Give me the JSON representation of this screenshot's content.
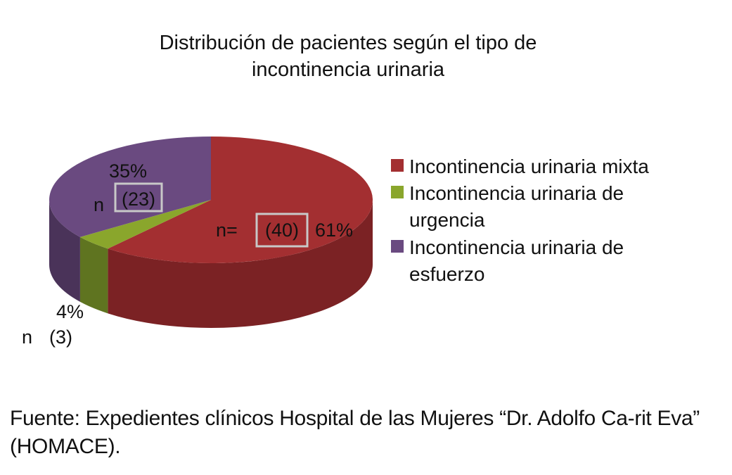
{
  "chart_data": {
    "type": "pie",
    "style": "3d",
    "title_lines": [
      "Distribución de pacientes según el tipo de",
      "incontinencia urinaria"
    ],
    "slices": [
      {
        "name": "Incontinencia urinaria mixta",
        "value": 61,
        "percent_label": "61%",
        "n_prefix": "n=",
        "n_label": "(40)",
        "color": "#a32f31",
        "side_color": "#7b2224"
      },
      {
        "name": "Incontinencia urinaria de urgencia",
        "value": 4,
        "percent_label": "4%",
        "n_prefix": "n",
        "n_label": "(3)",
        "color": "#8aa62c",
        "side_color": "#5f7420"
      },
      {
        "name": "Incontinencia urinaria de esfuerzo",
        "value": 35,
        "percent_label": "35%",
        "n_prefix": "n",
        "n_label": "(23)",
        "color": "#6a4a80",
        "side_color": "#4a3359"
      }
    ],
    "legend": {
      "position": "right",
      "entries": [
        {
          "lines": [
            "Incontinencia urinaria mixta"
          ],
          "color": "#a32f31"
        },
        {
          "lines": [
            "Incontinencia urinaria de",
            "urgencia"
          ],
          "color": "#8aa62c"
        },
        {
          "lines": [
            "Incontinencia urinaria de",
            "esfuerzo"
          ],
          "color": "#6a4a80"
        }
      ]
    }
  },
  "source_note": "Fuente: Expedientes clínicos Hospital de las Mujeres “Dr. Adolfo Ca-rit Eva” (HOMACE)."
}
